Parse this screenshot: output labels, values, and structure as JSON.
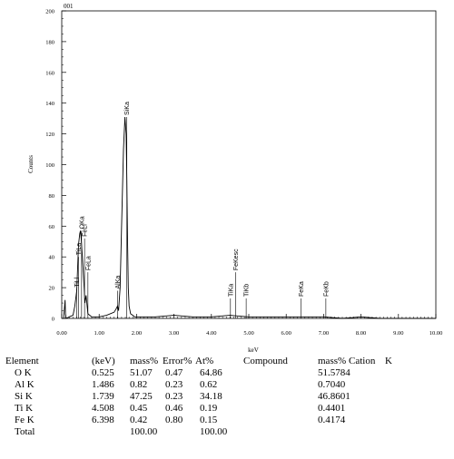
{
  "chart_data": {
    "type": "line",
    "spectrum_label": "001",
    "xlabel": "keV",
    "ylabel": "Counts",
    "xlim": [
      0,
      10
    ],
    "ylim": [
      0,
      200
    ],
    "x_ticks": [
      "0.00",
      "1.00",
      "2.00",
      "3.00",
      "4.00",
      "5.00",
      "6.00",
      "7.00",
      "8.00",
      "9.00",
      "10.00"
    ],
    "y_ticks": [
      "0",
      "20",
      "40",
      "60",
      "80",
      "100",
      "120",
      "140",
      "160",
      "180",
      "200"
    ],
    "series": [
      {
        "x": [
          0.0,
          0.05,
          0.09,
          0.1,
          0.12,
          0.2,
          0.3,
          0.35,
          0.4,
          0.42,
          0.45,
          0.48,
          0.5,
          0.52,
          0.55,
          0.6,
          0.62,
          0.65,
          0.7,
          0.8,
          0.9,
          1.0,
          1.2,
          1.4,
          1.45,
          1.49,
          1.52,
          1.56,
          1.6,
          1.65,
          1.69,
          1.72,
          1.74,
          1.76,
          1.78,
          1.8,
          1.84,
          1.9,
          1.95,
          2.0,
          2.5,
          3.0,
          3.5,
          4.0,
          4.5,
          5.0,
          5.5,
          6.0,
          6.5,
          7.0,
          7.5,
          8.0,
          8.5,
          9.0,
          9.5,
          10.0
        ],
        "y": [
          0,
          0,
          12,
          3,
          0,
          1,
          2,
          8,
          18,
          30,
          48,
          55,
          57,
          52,
          40,
          20,
          10,
          15,
          3,
          1,
          1,
          1,
          2,
          4,
          6,
          8,
          5,
          20,
          60,
          110,
          131,
          120,
          90,
          50,
          20,
          8,
          3,
          2,
          1,
          1,
          1,
          2,
          1,
          1,
          2,
          1,
          1,
          1,
          1,
          1,
          0,
          1,
          0,
          0,
          0,
          0
        ]
      }
    ],
    "annotations": [
      {
        "text": "SiKa",
        "x": 1.74,
        "y": 131
      },
      {
        "text": "OKa",
        "x": 0.53,
        "y": 57
      },
      {
        "text": "FeLl",
        "x": 0.61,
        "y": 52
      },
      {
        "text": "TiLa",
        "x": 0.45,
        "y": 40
      },
      {
        "text": "TiLl",
        "x": 0.4,
        "y": 19
      },
      {
        "text": "FeLa",
        "x": 0.7,
        "y": 30
      },
      {
        "text": "AlKa",
        "x": 1.49,
        "y": 18
      },
      {
        "text": "TiKa",
        "x": 4.51,
        "y": 13
      },
      {
        "text": "FeKesc",
        "x": 4.65,
        "y": 30
      },
      {
        "text": "TiKb",
        "x": 4.93,
        "y": 13
      },
      {
        "text": "FeKa",
        "x": 6.4,
        "y": 13
      },
      {
        "text": "FeKb",
        "x": 7.06,
        "y": 13
      }
    ]
  },
  "results": {
    "headers": [
      "Element",
      "(keV)",
      "mass%",
      "Error%",
      "At%",
      "Compound",
      "mass%",
      "Cation",
      "K"
    ],
    "rows": [
      {
        "element": "O  K",
        "kev": "0.525",
        "mass": "51.07",
        "error": "0.47",
        "at": "64.86",
        "k": "51.5784"
      },
      {
        "element": "Al K",
        "kev": "1.486",
        "mass": "0.82",
        "error": "0.23",
        "at": "0.62",
        "k": "0.7040"
      },
      {
        "element": "Si K",
        "kev": "1.739",
        "mass": "47.25",
        "error": "0.23",
        "at": "34.18",
        "k": "46.8601"
      },
      {
        "element": "Ti K",
        "kev": "4.508",
        "mass": "0.45",
        "error": "0.46",
        "at": "0.19",
        "k": "0.4401"
      },
      {
        "element": "Fe K",
        "kev": "6.398",
        "mass": "0.42",
        "error": "0.80",
        "at": "0.15",
        "k": "0.4174"
      }
    ],
    "total": {
      "label": "Total",
      "mass": "100.00",
      "at": "100.00"
    }
  }
}
